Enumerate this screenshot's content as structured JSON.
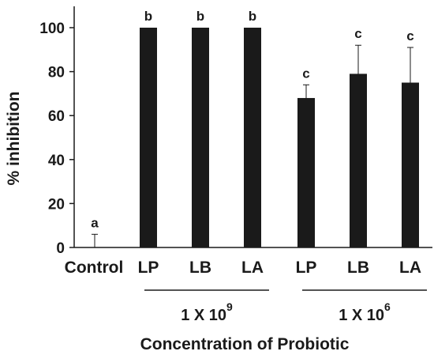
{
  "chart_data": {
    "type": "bar",
    "title": "",
    "ylabel": "% inhibition",
    "xlabel": "Concentration of Probiotic",
    "ylim": [
      0,
      100
    ],
    "yticks": [
      0,
      20,
      40,
      60,
      80,
      100
    ],
    "grid": false,
    "legend": "none",
    "bar_color": "#1a1a1a",
    "categories": [
      "Control",
      "LP",
      "LB",
      "LA",
      "LP",
      "LB",
      "LA"
    ],
    "values": [
      0,
      100,
      100,
      100,
      68,
      79,
      75
    ],
    "error": [
      6,
      0,
      0,
      0,
      6,
      13,
      16
    ],
    "significance": [
      "a",
      "b",
      "b",
      "b",
      "c",
      "c",
      "c"
    ],
    "groups": [
      {
        "base": "1 X 10",
        "exponent": "9",
        "categories": [
          1,
          2,
          3
        ]
      },
      {
        "base": "1 X 10",
        "exponent": "6",
        "categories": [
          4,
          5,
          6
        ]
      }
    ]
  }
}
